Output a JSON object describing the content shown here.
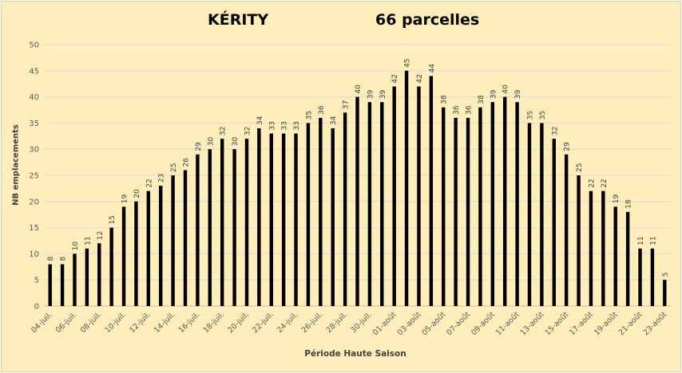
{
  "chart_data": {
    "type": "bar",
    "title": "KÉRITY",
    "subtitle": "66 parcelles",
    "xlabel": "Période Haute Saison",
    "ylabel": "NB emplacements",
    "ylim": [
      0,
      50
    ],
    "yticks": [
      0,
      5,
      10,
      15,
      20,
      25,
      30,
      35,
      40,
      45,
      50
    ],
    "grid": true,
    "bar_color": "#000000",
    "background": "#ffeebb",
    "categories": [
      "04-juil.",
      "05-juil.",
      "06-juil.",
      "07-juil.",
      "08-juil.",
      "09-juil.",
      "10-juil.",
      "11-juil.",
      "12-juil.",
      "13-juil.",
      "14-juil.",
      "15-juil.",
      "16-juil.",
      "17-juil.",
      "18-juil.",
      "19-juil.",
      "20-juil.",
      "21-juil.",
      "22-juil.",
      "23-juil.",
      "24-juil.",
      "25-juil.",
      "26-juil.",
      "27-juil.",
      "28-juil.",
      "29-juil.",
      "30-juil.",
      "31-juil.",
      "01-août",
      "02-août",
      "03-août",
      "04-août",
      "05-août",
      "06-août",
      "07-août",
      "08-août",
      "09-août",
      "10-août",
      "11-août",
      "12-août",
      "13-août",
      "14-août",
      "15-août",
      "16-août",
      "17-août",
      "18-août",
      "19-août",
      "20-août",
      "21-août",
      "22-août",
      "23-août"
    ],
    "xtick_labels": [
      "04-juil.",
      "06-juil.",
      "08-juil.",
      "10-juil.",
      "12-juil.",
      "14-juil.",
      "16-juil.",
      "18-juil.",
      "20-juil.",
      "22-juil.",
      "24-juil.",
      "26-juil.",
      "28-juil.",
      "30-juil.",
      "01-août",
      "03-août",
      "05-août",
      "07-août",
      "09-août",
      "11-août",
      "13-août",
      "15-août",
      "17-août",
      "19-août",
      "21-août",
      "23-août"
    ],
    "values": [
      8,
      8,
      10,
      11,
      12,
      15,
      19,
      20,
      22,
      23,
      25,
      26,
      29,
      30,
      32,
      30,
      32,
      34,
      33,
      33,
      33,
      35,
      36,
      34,
      37,
      40,
      39,
      39,
      42,
      45,
      42,
      44,
      38,
      36,
      36,
      38,
      39,
      40,
      39,
      35,
      35,
      32,
      29,
      25,
      22,
      22,
      19,
      18,
      11,
      11,
      5
    ]
  }
}
